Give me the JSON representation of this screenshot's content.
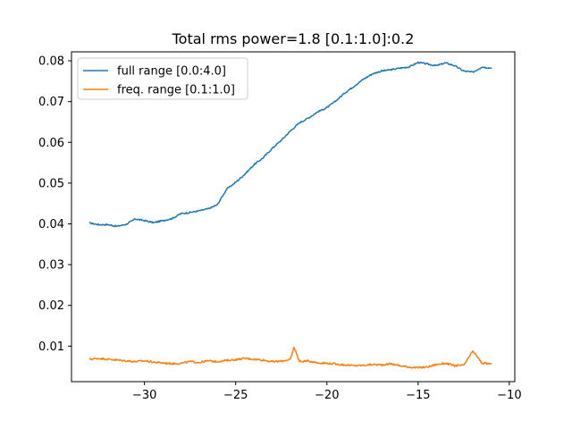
{
  "chart_data": {
    "type": "line",
    "title": "Total rms power=1.8 [0.1:1.0]:0.2",
    "xlabel": "",
    "ylabel": "",
    "xlim": [
      -34.0,
      -9.7
    ],
    "ylim": [
      0.0013,
      0.0822
    ],
    "xticks": [
      -30,
      -25,
      -20,
      -15,
      -10
    ],
    "xtick_labels": [
      "−30",
      "−25",
      "−20",
      "−15",
      "−10"
    ],
    "yticks": [
      0.01,
      0.02,
      0.03,
      0.04,
      0.05,
      0.06,
      0.07,
      0.08
    ],
    "ytick_labels": [
      "0.01",
      "0.02",
      "0.03",
      "0.04",
      "0.05",
      "0.06",
      "0.07",
      "0.08"
    ],
    "grid": false,
    "legend_position": "top-left",
    "series": [
      {
        "name": "full range [0.0:4.0]",
        "color": "#1f77b4",
        "x": [
          -33.0,
          -32.5,
          -32.0,
          -31.5,
          -31.0,
          -30.5,
          -30.0,
          -29.5,
          -29.0,
          -28.5,
          -28.0,
          -27.5,
          -27.0,
          -26.5,
          -26.0,
          -25.5,
          -25.0,
          -24.5,
          -24.0,
          -23.5,
          -23.0,
          -22.5,
          -22.0,
          -21.5,
          -21.0,
          -20.5,
          -20.0,
          -19.5,
          -19.0,
          -18.5,
          -18.0,
          -17.5,
          -17.0,
          -16.5,
          -16.0,
          -15.5,
          -15.0,
          -14.5,
          -14.0,
          -13.5,
          -13.0,
          -12.5,
          -12.0,
          -11.5,
          -11.0
        ],
        "y": [
          0.0402,
          0.0398,
          0.0398,
          0.0394,
          0.0399,
          0.0412,
          0.0408,
          0.0403,
          0.0408,
          0.0413,
          0.0425,
          0.0428,
          0.0432,
          0.0437,
          0.0447,
          0.0485,
          0.0502,
          0.0522,
          0.0545,
          0.0562,
          0.0585,
          0.0605,
          0.0628,
          0.0648,
          0.066,
          0.0675,
          0.0685,
          0.0702,
          0.0722,
          0.0738,
          0.0755,
          0.0768,
          0.0775,
          0.0778,
          0.0782,
          0.0785,
          0.0796,
          0.0792,
          0.0788,
          0.0795,
          0.0788,
          0.0775,
          0.0772,
          0.0785,
          0.0782
        ]
      },
      {
        "name": "freq. range [0.1:1.0]",
        "color": "#ff7f0e",
        "x": [
          -33.0,
          -32.5,
          -32.0,
          -31.5,
          -31.0,
          -30.5,
          -30.0,
          -29.5,
          -29.0,
          -28.5,
          -28.0,
          -27.5,
          -27.0,
          -26.5,
          -26.0,
          -25.5,
          -25.0,
          -24.5,
          -24.0,
          -23.5,
          -23.0,
          -22.5,
          -22.0,
          -21.8,
          -21.5,
          -21.0,
          -20.5,
          -20.0,
          -19.5,
          -19.0,
          -18.5,
          -18.0,
          -17.5,
          -17.0,
          -16.5,
          -16.0,
          -15.5,
          -15.0,
          -14.5,
          -14.0,
          -13.5,
          -13.0,
          -12.5,
          -12.0,
          -11.5,
          -11.0
        ],
        "y": [
          0.0068,
          0.007,
          0.0068,
          0.0066,
          0.0064,
          0.0062,
          0.0064,
          0.0061,
          0.0059,
          0.0057,
          0.0058,
          0.0062,
          0.006,
          0.0064,
          0.0062,
          0.0065,
          0.0067,
          0.007,
          0.0068,
          0.0066,
          0.0062,
          0.0063,
          0.0068,
          0.0098,
          0.0062,
          0.0064,
          0.0059,
          0.0058,
          0.0056,
          0.0054,
          0.0052,
          0.0053,
          0.0055,
          0.0054,
          0.0057,
          0.0052,
          0.0049,
          0.0047,
          0.0049,
          0.0055,
          0.0058,
          0.0052,
          0.0053,
          0.0088,
          0.0058,
          0.0057
        ]
      }
    ]
  }
}
